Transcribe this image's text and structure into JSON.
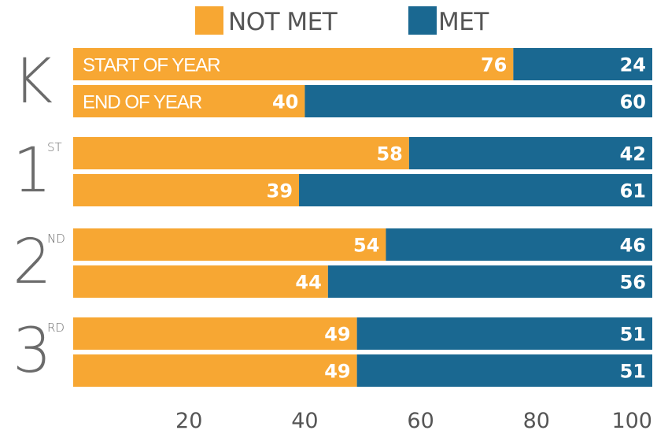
{
  "colors": {
    "not_met": "#F7A733",
    "met": "#1A6891",
    "text_light": "#ffffff",
    "axis_text": "#555555"
  },
  "legend": [
    {
      "label": "NOT MET",
      "color": "#F7A733"
    },
    {
      "label": "MET",
      "color": "#1A6891"
    }
  ],
  "chart_data": {
    "type": "bar",
    "orientation": "horizontal",
    "stacked": true,
    "groups": [
      {
        "grade": "K",
        "suffix": "",
        "rows": [
          {
            "label": "START OF YEAR",
            "not_met": 76,
            "met": 24
          },
          {
            "label": "END OF YEAR",
            "not_met": 40,
            "met": 60
          }
        ]
      },
      {
        "grade": "1",
        "suffix": "ST",
        "rows": [
          {
            "label": "",
            "not_met": 58,
            "met": 42
          },
          {
            "label": "",
            "not_met": 39,
            "met": 61
          }
        ]
      },
      {
        "grade": "2",
        "suffix": "ND",
        "rows": [
          {
            "label": "",
            "not_met": 54,
            "met": 46
          },
          {
            "label": "",
            "not_met": 44,
            "met": 56
          }
        ]
      },
      {
        "grade": "3",
        "suffix": "RD",
        "rows": [
          {
            "label": "",
            "not_met": 49,
            "met": 51
          },
          {
            "label": "",
            "not_met": 49,
            "met": 51
          }
        ]
      }
    ],
    "series": [
      {
        "name": "NOT MET",
        "key": "not_met"
      },
      {
        "name": "MET",
        "key": "met"
      }
    ],
    "xlim": [
      0,
      100
    ],
    "xticks": [
      20,
      40,
      60,
      80,
      100
    ],
    "legend_position": "top",
    "grid": false
  }
}
